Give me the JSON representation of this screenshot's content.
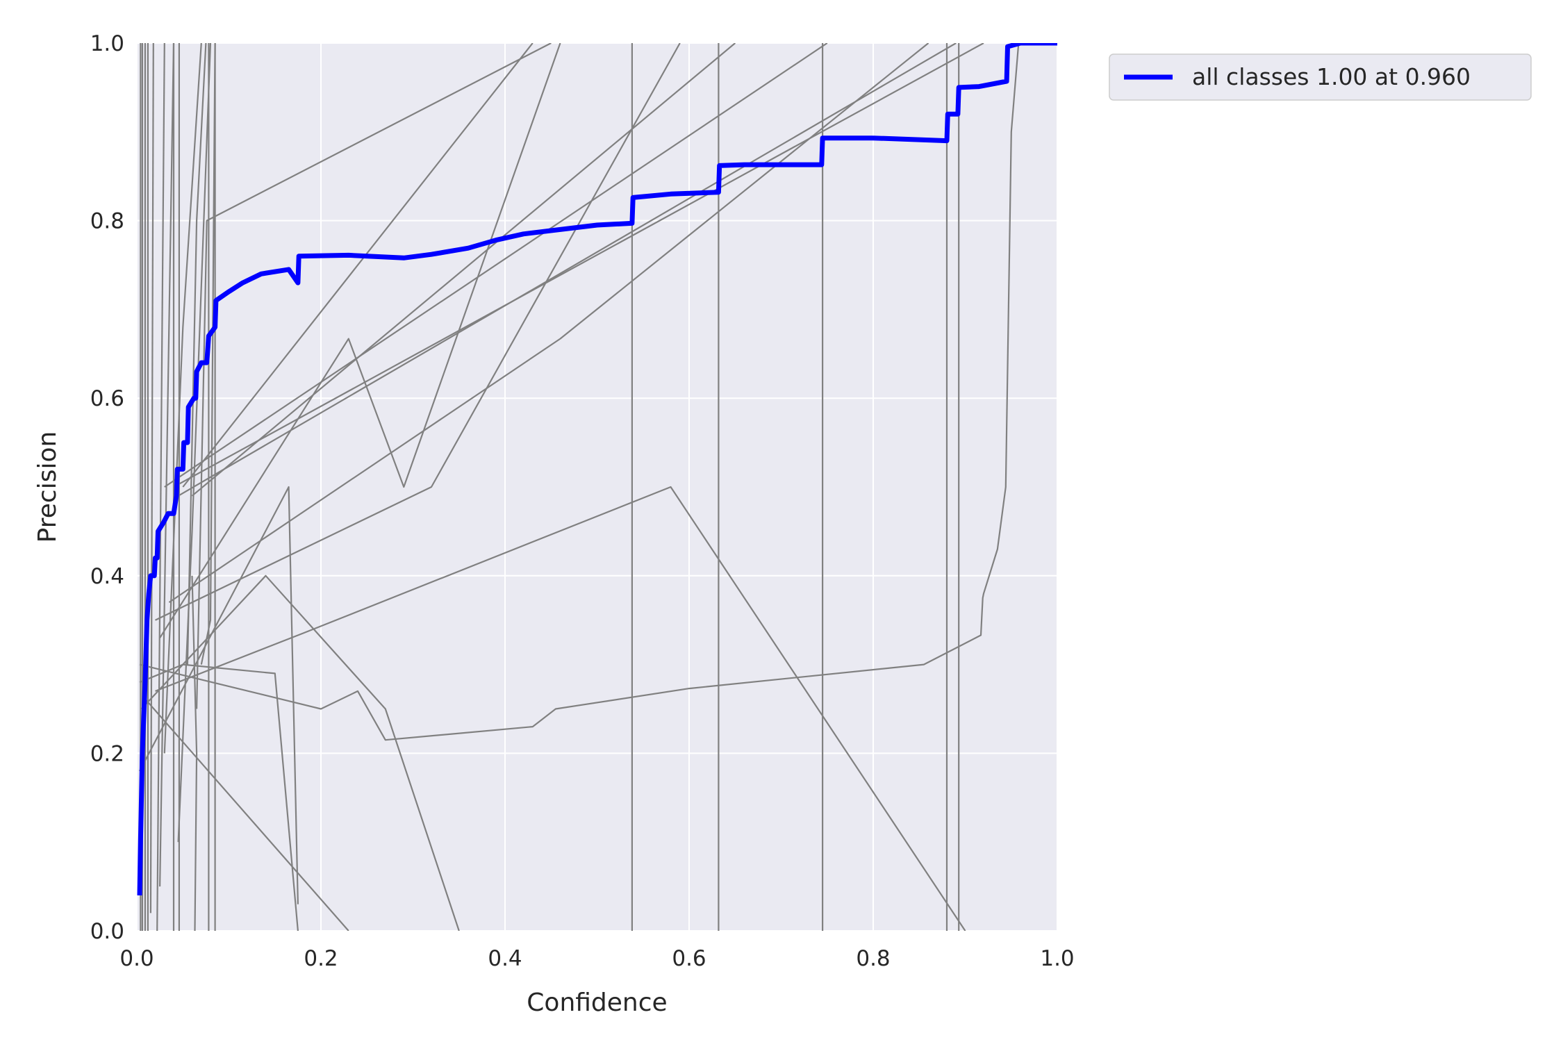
{
  "chart_data": {
    "type": "line",
    "xlabel": "Confidence",
    "ylabel": "Precision",
    "xlim": [
      0.0,
      1.0
    ],
    "ylim": [
      0.0,
      1.0
    ],
    "xticks": [
      "0.0",
      "0.2",
      "0.4",
      "0.6",
      "0.8",
      "1.0"
    ],
    "yticks": [
      "0.0",
      "0.2",
      "0.4",
      "0.6",
      "0.8",
      "1.0"
    ],
    "grid": true,
    "legend_position": "outside-top-right",
    "colors": {
      "background": "#eaeaf2",
      "grid": "#ffffff",
      "class_lines": "#808080",
      "all_classes": "#0000ff"
    },
    "series": [
      {
        "name": "all classes 1.00 at 0.960",
        "emphasis": true,
        "points": [
          [
            0.003,
            0.04
          ],
          [
            0.004,
            0.1
          ],
          [
            0.006,
            0.2
          ],
          [
            0.009,
            0.28
          ],
          [
            0.011,
            0.35
          ],
          [
            0.013,
            0.38
          ],
          [
            0.015,
            0.4
          ],
          [
            0.019,
            0.4
          ],
          [
            0.02,
            0.42
          ],
          [
            0.022,
            0.42
          ],
          [
            0.023,
            0.45
          ],
          [
            0.029,
            0.46
          ],
          [
            0.034,
            0.47
          ],
          [
            0.04,
            0.47
          ],
          [
            0.043,
            0.49
          ],
          [
            0.044,
            0.52
          ],
          [
            0.05,
            0.52
          ],
          [
            0.051,
            0.55
          ],
          [
            0.055,
            0.55
          ],
          [
            0.056,
            0.59
          ],
          [
            0.062,
            0.6
          ],
          [
            0.064,
            0.6
          ],
          [
            0.065,
            0.63
          ],
          [
            0.07,
            0.64
          ],
          [
            0.076,
            0.64
          ],
          [
            0.078,
            0.67
          ],
          [
            0.085,
            0.68
          ],
          [
            0.086,
            0.71
          ],
          [
            0.1,
            0.72
          ],
          [
            0.115,
            0.73
          ],
          [
            0.135,
            0.74
          ],
          [
            0.165,
            0.745
          ],
          [
            0.175,
            0.73
          ],
          [
            0.176,
            0.76
          ],
          [
            0.23,
            0.761
          ],
          [
            0.29,
            0.758
          ],
          [
            0.32,
            0.762
          ],
          [
            0.36,
            0.769
          ],
          [
            0.39,
            0.778
          ],
          [
            0.42,
            0.785
          ],
          [
            0.46,
            0.79
          ],
          [
            0.5,
            0.795
          ],
          [
            0.538,
            0.797
          ],
          [
            0.539,
            0.826
          ],
          [
            0.58,
            0.83
          ],
          [
            0.632,
            0.832
          ],
          [
            0.633,
            0.862
          ],
          [
            0.66,
            0.863
          ],
          [
            0.744,
            0.863
          ],
          [
            0.745,
            0.893
          ],
          [
            0.8,
            0.893
          ],
          [
            0.88,
            0.89
          ],
          [
            0.881,
            0.92
          ],
          [
            0.892,
            0.92
          ],
          [
            0.893,
            0.95
          ],
          [
            0.915,
            0.951
          ],
          [
            0.945,
            0.957
          ],
          [
            0.946,
            0.996
          ],
          [
            0.96,
            1.0
          ],
          [
            1.0,
            1.0
          ]
        ]
      },
      {
        "points": [
          [
            0.003,
            0.3
          ],
          [
            0.2,
            0.25
          ],
          [
            0.24,
            0.27
          ],
          [
            0.27,
            0.215
          ],
          [
            0.43,
            0.23
          ],
          [
            0.455,
            0.25
          ],
          [
            0.6,
            0.273
          ],
          [
            0.855,
            0.3
          ],
          [
            0.917,
            0.333
          ],
          [
            0.919,
            0.375
          ],
          [
            0.92,
            0.38
          ],
          [
            0.935,
            0.43
          ],
          [
            0.944,
            0.5
          ],
          [
            0.947,
            0.7
          ],
          [
            0.95,
            0.9
          ],
          [
            0.958,
            1.0
          ]
        ]
      },
      {
        "points": [
          [
            0.003,
            0.28
          ],
          [
            0.05,
            0.3
          ],
          [
            0.15,
            0.29
          ],
          [
            0.175,
            0.0
          ]
        ]
      },
      {
        "points": [
          [
            0.003,
            0.18
          ],
          [
            0.165,
            0.5
          ],
          [
            0.175,
            0.03
          ]
        ]
      },
      {
        "points": [
          [
            0.005,
            0.25
          ],
          [
            0.14,
            0.4
          ],
          [
            0.27,
            0.25
          ],
          [
            0.35,
            0.0
          ]
        ]
      },
      {
        "points": [
          [
            0.01,
            0.26
          ],
          [
            0.23,
            0.0
          ]
        ]
      },
      {
        "points": [
          [
            0.02,
            0.27
          ],
          [
            0.18,
            0.335
          ],
          [
            0.58,
            0.5
          ],
          [
            0.9,
            0.0
          ]
        ]
      },
      {
        "points": [
          [
            0.02,
            0.35
          ],
          [
            0.32,
            0.5
          ],
          [
            0.59,
            1.0
          ]
        ]
      },
      {
        "points": [
          [
            0.025,
            0.33
          ],
          [
            0.23,
            0.667
          ],
          [
            0.29,
            0.5
          ],
          [
            0.46,
            1.0
          ]
        ]
      },
      {
        "points": [
          [
            0.03,
            0.5
          ],
          [
            0.75,
            1.0
          ]
        ]
      },
      {
        "points": [
          [
            0.035,
            0.37
          ],
          [
            0.46,
            0.667
          ],
          [
            0.86,
            1.0
          ]
        ]
      },
      {
        "points": [
          [
            0.04,
            0.5
          ],
          [
            0.92,
            1.0
          ]
        ]
      },
      {
        "points": [
          [
            0.045,
            0.49
          ],
          [
            0.89,
            1.0
          ]
        ]
      },
      {
        "points": [
          [
            0.05,
            0.5
          ],
          [
            0.43,
            1.0
          ]
        ]
      },
      {
        "points": [
          [
            0.06,
            0.49
          ],
          [
            0.65,
            1.0
          ]
        ]
      },
      {
        "points": [
          [
            0.065,
            0.25
          ],
          [
            0.076,
            0.8
          ],
          [
            0.45,
            1.0
          ]
        ]
      },
      {
        "points": [
          [
            0.07,
            0.3
          ],
          [
            0.08,
            0.35
          ],
          [
            0.085,
            1.0
          ]
        ]
      },
      {
        "points": [
          [
            0.06,
            0.4
          ],
          [
            0.065,
            0.2
          ],
          [
            0.063,
            0.0
          ]
        ]
      },
      {
        "points": [
          [
            0.004,
            0.0
          ],
          [
            0.004,
            1.0
          ]
        ]
      },
      {
        "points": [
          [
            0.006,
            0.0
          ],
          [
            0.006,
            1.0
          ]
        ]
      },
      {
        "points": [
          [
            0.009,
            0.0
          ],
          [
            0.009,
            1.0
          ]
        ]
      },
      {
        "points": [
          [
            0.012,
            0.0
          ],
          [
            0.012,
            1.0
          ]
        ]
      },
      {
        "points": [
          [
            0.015,
            0.02
          ],
          [
            0.018,
            1.0
          ]
        ]
      },
      {
        "points": [
          [
            0.022,
            0.0
          ],
          [
            0.03,
            1.0
          ]
        ]
      },
      {
        "points": [
          [
            0.025,
            0.05
          ],
          [
            0.04,
            1.0
          ]
        ]
      },
      {
        "points": [
          [
            0.03,
            0.2
          ],
          [
            0.05,
            0.68
          ],
          [
            0.07,
            1.0
          ]
        ]
      },
      {
        "points": [
          [
            0.045,
            0.1
          ],
          [
            0.06,
            0.45
          ],
          [
            0.08,
            1.0
          ]
        ]
      },
      {
        "points": [
          [
            0.055,
            0.3
          ],
          [
            0.065,
            0.8
          ],
          [
            0.075,
            1.0
          ]
        ]
      },
      {
        "points": [
          [
            0.04,
            0.0
          ],
          [
            0.04,
            1.0
          ]
        ]
      },
      {
        "points": [
          [
            0.046,
            0.0
          ],
          [
            0.046,
            1.0
          ]
        ]
      },
      {
        "points": [
          [
            0.078,
            0.0
          ],
          [
            0.078,
            1.0
          ]
        ]
      },
      {
        "points": [
          [
            0.085,
            0.0
          ],
          [
            0.085,
            1.0
          ]
        ]
      },
      {
        "points": [
          [
            0.538,
            0.0
          ],
          [
            0.538,
            1.0
          ]
        ]
      },
      {
        "points": [
          [
            0.632,
            0.0
          ],
          [
            0.632,
            1.0
          ]
        ]
      },
      {
        "points": [
          [
            0.745,
            0.0
          ],
          [
            0.745,
            1.0
          ]
        ]
      },
      {
        "points": [
          [
            0.88,
            0.0
          ],
          [
            0.88,
            1.0
          ]
        ]
      },
      {
        "points": [
          [
            0.893,
            0.0
          ],
          [
            0.893,
            1.0
          ]
        ]
      }
    ]
  }
}
